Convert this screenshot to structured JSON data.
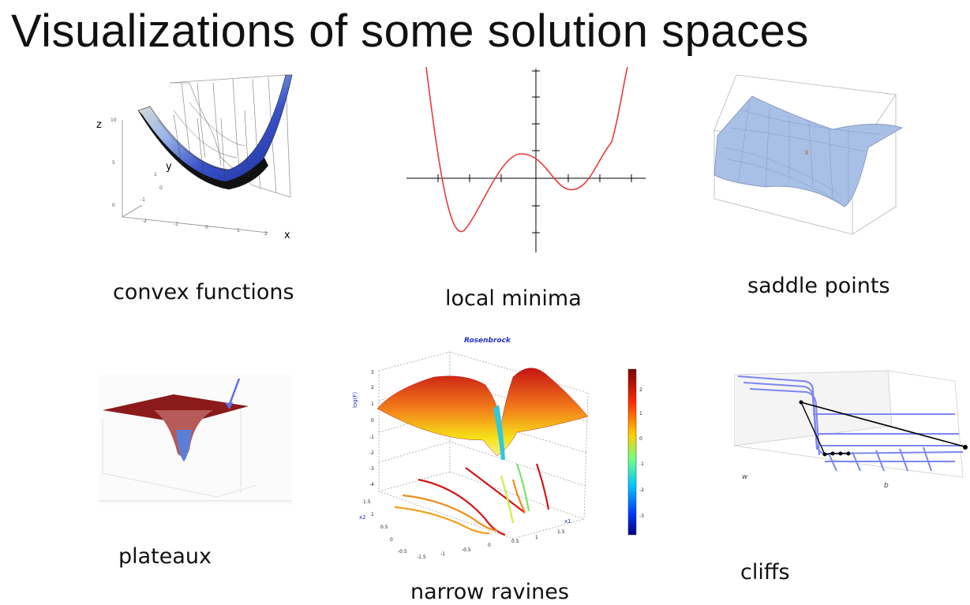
{
  "title": "Visualizations of some solution spaces",
  "panels": [
    {
      "caption": "convex functions",
      "axis_labels": [
        "z",
        "y",
        "x"
      ],
      "ticks": [
        "10",
        "5",
        "1",
        "0",
        "-1",
        "0",
        "-2",
        "-1",
        "0",
        "1",
        "2"
      ]
    },
    {
      "caption": "local minima"
    },
    {
      "caption": "saddle points"
    },
    {
      "caption": "plateaux"
    },
    {
      "caption": "narrow ravines",
      "plot_title": "Rosenbrock",
      "zlabel": "log(F)",
      "xlabel": "x1",
      "ylabel": "x2",
      "zticks": [
        "3",
        "2",
        "1",
        "0",
        "-1",
        "-2",
        "-3",
        "-4"
      ],
      "x1ticks": [
        "-1.5",
        "-1",
        "-0.5",
        "0",
        "0.5",
        "1",
        "1.5"
      ],
      "x2ticks": [
        "1.5",
        "1",
        "0.5",
        "0",
        "-0.5"
      ],
      "colorbar_ticks": [
        "2",
        "1",
        "0",
        "-1",
        "-2",
        "-3"
      ]
    },
    {
      "caption": "cliffs",
      "axis_labels": [
        "w",
        "b"
      ]
    }
  ],
  "colors": {
    "curve": "#e8393a",
    "saddle": "#a9c0e6",
    "plateau": "#8b1a1a",
    "cliff_grid": "#7d86f0"
  }
}
